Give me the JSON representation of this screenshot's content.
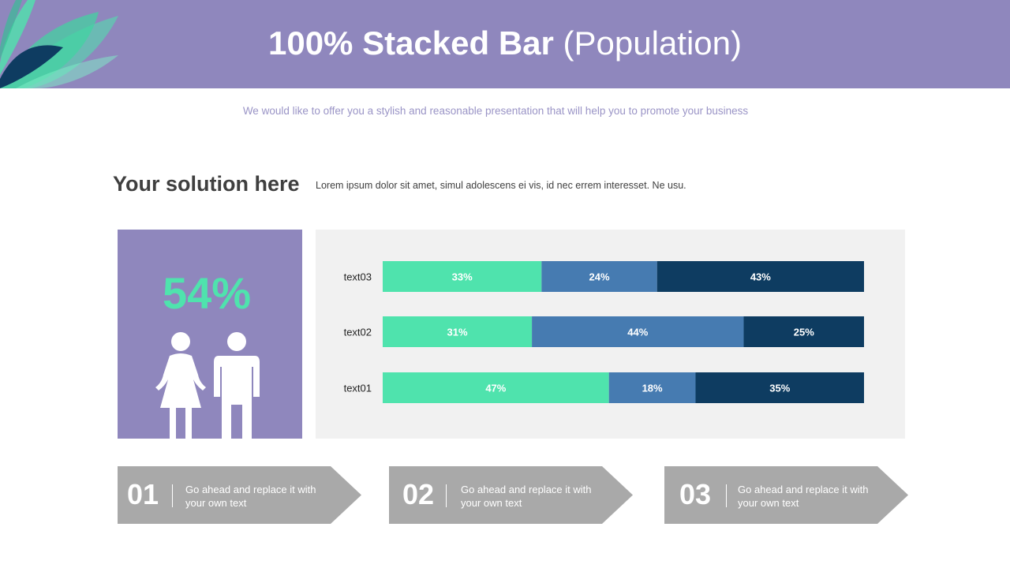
{
  "header": {
    "title_bold": "100% Stacked Bar",
    "title_light": "(Population)"
  },
  "subtitle": "We would like to offer you a stylish and reasonable presentation that will help you to promote your business",
  "section": {
    "heading": "Your solution here",
    "description": "Lorem ipsum dolor sit amet, simul adolescens ei vis, id nec errem interesset. Ne usu."
  },
  "stat": {
    "value": "54%",
    "icon": "people-icon"
  },
  "colors": {
    "header": "#8f87bd",
    "seg1": "#4fe3ad",
    "seg2": "#467bb1",
    "seg3": "#0e3c61",
    "step": "#a9a9a9"
  },
  "chart_data": {
    "type": "bar",
    "orientation": "horizontal",
    "stacked": "percent",
    "categories": [
      "text03",
      "text02",
      "text01"
    ],
    "series": [
      {
        "values": [
          33,
          31,
          47
        ]
      },
      {
        "values": [
          24,
          44,
          18
        ]
      },
      {
        "values": [
          43,
          25,
          35
        ]
      }
    ],
    "data_labels": [
      [
        "33%",
        "24%",
        "43%"
      ],
      [
        "31%",
        "44%",
        "25%"
      ],
      [
        "47%",
        "18%",
        "35%"
      ]
    ],
    "xlim": [
      0,
      100
    ],
    "grid": false,
    "legend": "none"
  },
  "steps": [
    {
      "num": "01",
      "text": "Go ahead and replace it with your own text"
    },
    {
      "num": "02",
      "text": "Go ahead and replace it with your own text"
    },
    {
      "num": "03",
      "text": "Go ahead and replace it with your own text"
    }
  ]
}
